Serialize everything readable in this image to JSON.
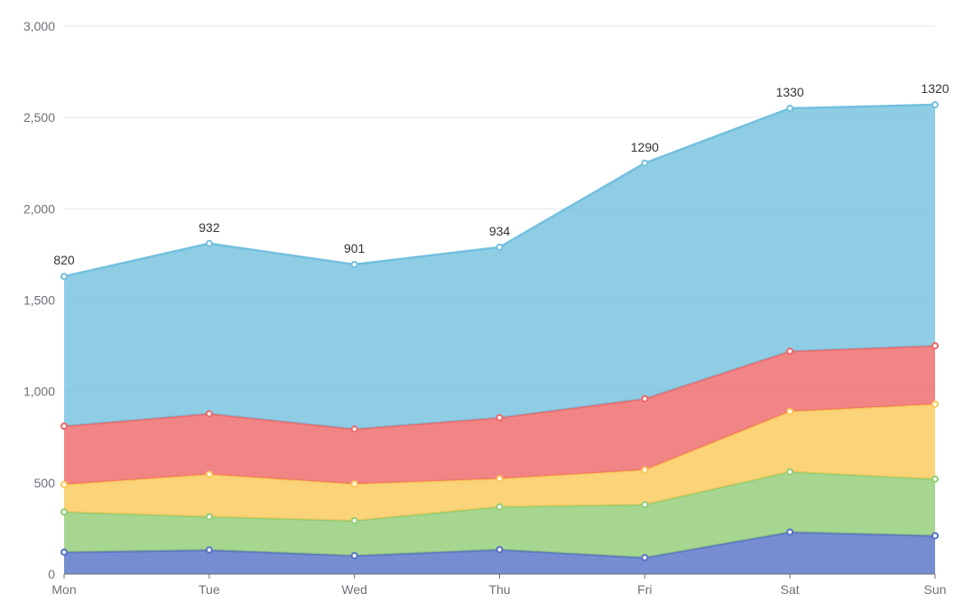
{
  "chart_data": {
    "type": "area",
    "stacked": true,
    "categories": [
      "Mon",
      "Tue",
      "Wed",
      "Thu",
      "Fri",
      "Sat",
      "Sun"
    ],
    "series": [
      {
        "color": "#5470c6",
        "values": [
          120,
          132,
          101,
          134,
          90,
          230,
          210
        ]
      },
      {
        "color": "#91cc75",
        "values": [
          220,
          182,
          191,
          234,
          290,
          330,
          310
        ]
      },
      {
        "color": "#fac858",
        "values": [
          150,
          232,
          201,
          154,
          190,
          330,
          410
        ]
      },
      {
        "color": "#ee6666",
        "values": [
          320,
          332,
          301,
          334,
          390,
          330,
          320
        ]
      },
      {
        "color": "#73c0de",
        "values": [
          820,
          932,
          901,
          934,
          1290,
          1330,
          1320
        ],
        "data_labels": [
          "820",
          "932",
          "901",
          "934",
          "1290",
          "1330",
          "1320"
        ]
      }
    ],
    "y_ticks": [
      "0",
      "500",
      "1,000",
      "1,500",
      "2,000",
      "2,500",
      "3,000"
    ],
    "ylim": [
      0,
      3000
    ],
    "grid": true,
    "title": "",
    "xlabel": "",
    "ylabel": ""
  }
}
